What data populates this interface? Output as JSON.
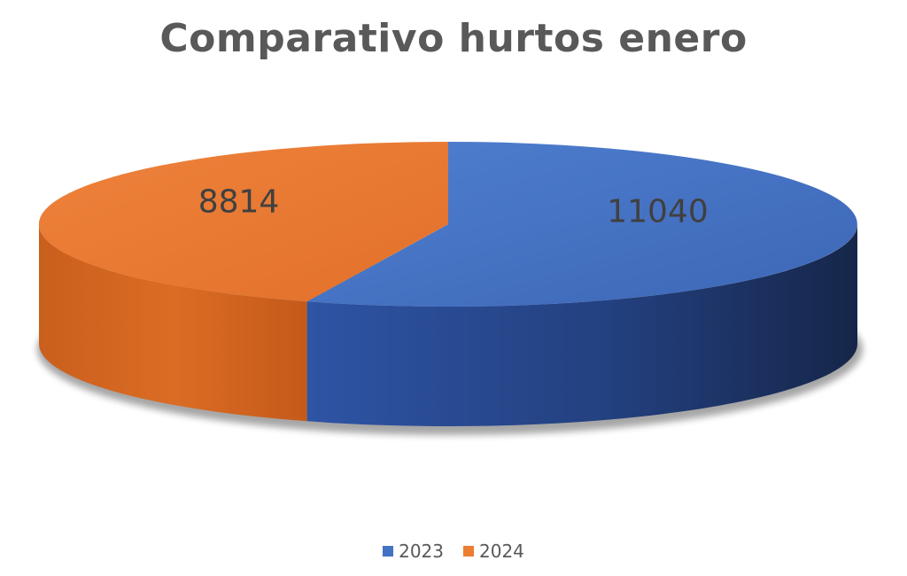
{
  "chart_data": {
    "type": "pie",
    "title": "Comparativo hurtos enero",
    "categories": [
      "2023",
      "2024"
    ],
    "values": [
      11040,
      8814
    ],
    "colors": [
      "#4472C4",
      "#ED7D31"
    ],
    "style": "3d",
    "legend_position": "bottom"
  }
}
